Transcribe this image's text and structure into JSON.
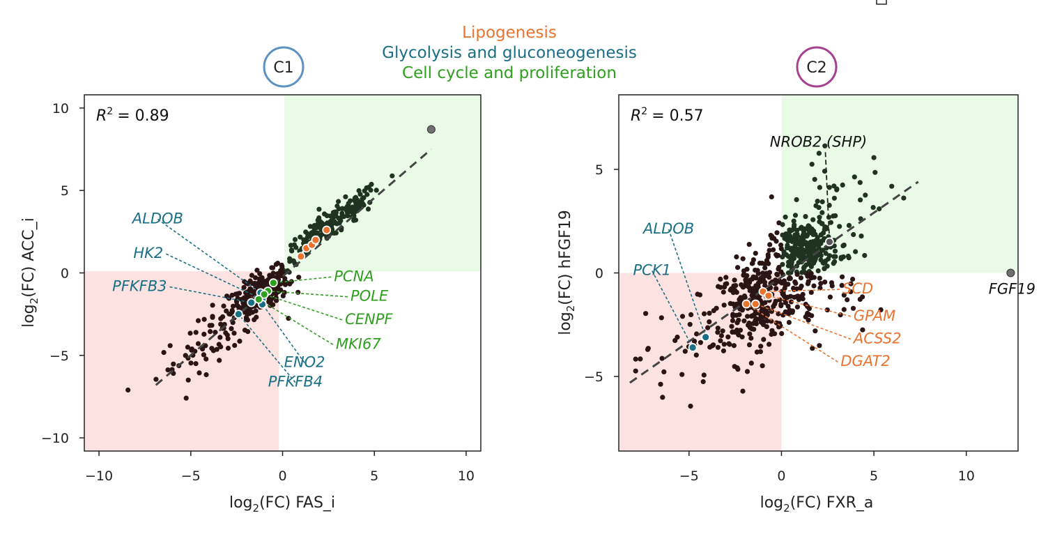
{
  "colors": {
    "lipogenesis": "#e8742f",
    "glycolysis": "#1a6f85",
    "cell_cycle": "#2ea01e",
    "c1_ring": "#5b92c4",
    "c2_ring": "#a3418f",
    "down_region": "#fde2e2",
    "up_region": "#e9fbe7",
    "point_default": "#2b1414",
    "point_up": "#1f3320",
    "fit_line": "#444444",
    "text": "#222222"
  },
  "legend": {
    "lipogenesis": "Lipogenesis",
    "glycolysis": "Glycolysis and gluconeogenesis",
    "cell_cycle": "Cell cycle and proliferation"
  },
  "chart_data": [
    {
      "type": "scatter",
      "panel_label": "C1",
      "xlabel": "log2(FC) FAS_i",
      "ylabel": "log2(FC) ACC_i",
      "r2_label": "R",
      "r2_value": "= 0.89",
      "xlim": [
        -10.8,
        10.8
      ],
      "ylim": [
        -10.8,
        10.8
      ],
      "xticks": [
        -10,
        -5,
        0,
        5,
        10
      ],
      "yticks": [
        -10,
        -5,
        0,
        5,
        10
      ],
      "tick_labels": [
        "−10",
        "−5",
        "0",
        "5",
        "10"
      ],
      "fit_line": [
        [
          -6.9,
          -6.8
        ],
        [
          8.1,
          7.5
        ]
      ],
      "down_region": {
        "x": [
          -10.8,
          -0.2
        ],
        "y": [
          -10.8,
          0.1
        ]
      },
      "up_region": {
        "x": [
          0.1,
          10.8
        ],
        "y": [
          0.1,
          10.8
        ]
      },
      "outlier": {
        "x": 8.1,
        "y": 8.7
      },
      "clusters": [
        {
          "cx": -1.2,
          "cy": -1.2,
          "sx": 0.75,
          "sy": 0.65,
          "n": 230,
          "corr": 0.6,
          "cls": "down"
        },
        {
          "cx": -3.5,
          "cy": -3.6,
          "sx": 1.7,
          "sy": 1.5,
          "n": 85,
          "corr": 0.85,
          "cls": "down"
        },
        {
          "cx": 2.6,
          "cy": 2.9,
          "sx": 1.4,
          "sy": 1.2,
          "n": 200,
          "corr": 0.93,
          "cls": "up"
        }
      ],
      "highlighted_genes": [
        {
          "gene": "ALDOB",
          "group": "glycolysis",
          "x": -1.2,
          "y": -1.2,
          "lx": -6.8,
          "ly": 3.0,
          "anchor": "middle"
        },
        {
          "gene": "HK2",
          "group": "glycolysis",
          "x": -1.1,
          "y": -1.6,
          "lx": -6.5,
          "ly": 0.9,
          "anchor": "end"
        },
        {
          "gene": "PFKFB3",
          "group": "glycolysis",
          "x": -1.7,
          "y": -1.8,
          "lx": -6.3,
          "ly": -1.1,
          "anchor": "end"
        },
        {
          "gene": "ENO2",
          "group": "glycolysis",
          "x": -1.1,
          "y": -1.9,
          "lx": 1.2,
          "ly": -5.7,
          "anchor": "middle"
        },
        {
          "gene": "PFKFB4",
          "group": "glycolysis",
          "x": -2.4,
          "y": -2.5,
          "lx": 0.7,
          "ly": -6.9,
          "anchor": "middle"
        },
        {
          "gene": "PCNA",
          "group": "cell_cycle",
          "x": -0.5,
          "y": -0.6,
          "lx": 2.8,
          "ly": -0.5,
          "anchor": "start"
        },
        {
          "gene": "POLE",
          "group": "cell_cycle",
          "x": -0.8,
          "y": -1.1,
          "lx": 3.7,
          "ly": -1.7,
          "anchor": "start"
        },
        {
          "gene": "CENPF",
          "group": "cell_cycle",
          "x": -1.0,
          "y": -1.3,
          "lx": 3.4,
          "ly": -3.1,
          "anchor": "start"
        },
        {
          "gene": "MKI67",
          "group": "cell_cycle",
          "x": -1.3,
          "y": -1.6,
          "lx": 2.9,
          "ly": -4.6,
          "anchor": "start"
        }
      ],
      "lipo_points": [
        [
          1.0,
          1.0
        ],
        [
          1.3,
          1.5
        ],
        [
          1.6,
          1.7
        ],
        [
          1.8,
          2.0
        ],
        [
          2.4,
          2.6
        ]
      ]
    },
    {
      "type": "scatter",
      "panel_label": "C2",
      "xlabel": "log2(FC) FXR_a",
      "ylabel": "log2(FC) hFGF19",
      "r2_label": "R",
      "r2_value": "= 0.57",
      "xlim": [
        -8.8,
        12.8
      ],
      "ylim": [
        -8.6,
        8.6
      ],
      "xticks": [
        -5,
        0,
        5,
        10
      ],
      "yticks": [
        -5,
        0,
        5
      ],
      "tick_labels_x": [
        "−5",
        "0",
        "5",
        "10"
      ],
      "tick_labels_y": [
        "−5",
        "0",
        "5"
      ],
      "fit_line": [
        [
          -8.2,
          -5.3
        ],
        [
          7.4,
          4.4
        ]
      ],
      "down_region": {
        "x": [
          -8.8,
          0.0
        ],
        "y": [
          -8.6,
          0.0
        ]
      },
      "up_region": {
        "x": [
          0.0,
          12.8
        ],
        "y": [
          0.0,
          8.6
        ]
      },
      "outlier": {
        "x": 12.4,
        "y": 0.0,
        "label": "FGF19"
      },
      "clusters": [
        {
          "cx": -1.4,
          "cy": -1.3,
          "sx": 1.2,
          "sy": 1.1,
          "n": 260,
          "corr": 0.3,
          "cls": "down"
        },
        {
          "cx": -4.0,
          "cy": -3.2,
          "sx": 2.0,
          "sy": 1.5,
          "n": 60,
          "corr": 0.5,
          "cls": "down"
        },
        {
          "cx": 1.3,
          "cy": 1.1,
          "sx": 0.9,
          "sy": 0.7,
          "n": 260,
          "corr": 0.2,
          "cls": "up"
        },
        {
          "cx": 2.8,
          "cy": 2.8,
          "sx": 1.9,
          "sy": 1.5,
          "n": 60,
          "corr": 0.3,
          "cls": "up"
        },
        {
          "cx": 1.8,
          "cy": -1.5,
          "sx": 1.3,
          "sy": 0.9,
          "n": 45,
          "corr": 0.0,
          "cls": "down"
        }
      ],
      "highlighted_genes": [
        {
          "gene": "ALDOB",
          "group": "glycolysis",
          "x": -4.1,
          "y": -3.1,
          "lx": -6.1,
          "ly": 1.9,
          "anchor": "middle"
        },
        {
          "gene": "PCK1",
          "group": "glycolysis",
          "x": -4.8,
          "y": -3.6,
          "lx": -7.0,
          "ly": -0.1,
          "anchor": "middle"
        },
        {
          "gene": "SCD",
          "group": "lipogenesis",
          "x": -1.0,
          "y": -0.9,
          "lx": 3.3,
          "ly": -1.0,
          "anchor": "start"
        },
        {
          "gene": "GPAM",
          "group": "lipogenesis",
          "x": -0.7,
          "y": -1.1,
          "lx": 3.9,
          "ly": -2.3,
          "anchor": "start"
        },
        {
          "gene": "ACSS2",
          "group": "lipogenesis",
          "x": -1.4,
          "y": -1.5,
          "lx": 3.9,
          "ly": -3.4,
          "anchor": "start"
        },
        {
          "gene": "DGAT2",
          "group": "lipogenesis",
          "x": -1.9,
          "y": -1.5,
          "lx": 3.2,
          "ly": -4.5,
          "anchor": "start"
        }
      ],
      "nrob2": {
        "gene": "NROB2 (SHP)",
        "x": 2.6,
        "y": 1.5,
        "lx": 2.0,
        "ly": 6.1
      }
    }
  ]
}
